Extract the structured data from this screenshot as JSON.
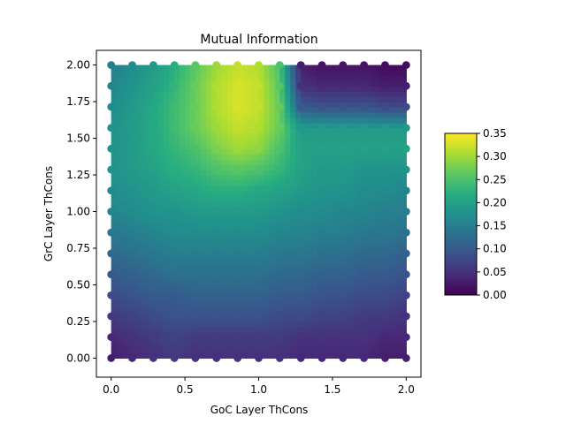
{
  "chart_data": {
    "type": "heatmap",
    "title": "Mutual Information",
    "xlabel": "GoC Layer ThCons",
    "ylabel": "GrC Layer ThCons",
    "xlim": [
      -0.1,
      2.1
    ],
    "ylim": [
      -0.13,
      2.1
    ],
    "x_ticks": [
      "0.0",
      "0.5",
      "1.0",
      "1.5",
      "2.0"
    ],
    "y_ticks": [
      "0.00",
      "0.25",
      "0.50",
      "0.75",
      "1.00",
      "1.25",
      "1.50",
      "1.75",
      "2.00"
    ],
    "grid": false,
    "colormap": "viridis",
    "colorbar": {
      "vmin": 0.0,
      "vmax": 0.35,
      "ticks": [
        "0.00",
        "0.05",
        "0.10",
        "0.15",
        "0.20",
        "0.25",
        "0.30",
        "0.35"
      ]
    },
    "x": [
      0,
      0.143,
      0.286,
      0.429,
      0.571,
      0.714,
      0.857,
      1.0,
      1.143,
      1.286,
      1.429,
      1.571,
      1.714,
      1.857,
      2.0
    ],
    "y": [
      0,
      0.143,
      0.286,
      0.429,
      0.571,
      0.714,
      0.857,
      1.0,
      1.143,
      1.286,
      1.429,
      1.571,
      1.714,
      1.857,
      2.0
    ],
    "values": [
      [
        0.03,
        0.04,
        0.05,
        0.06,
        0.05,
        0.05,
        0.05,
        0.05,
        0.05,
        0.04,
        0.04,
        0.04,
        0.04,
        0.03,
        0.03
      ],
      [
        0.04,
        0.05,
        0.06,
        0.07,
        0.06,
        0.06,
        0.06,
        0.06,
        0.06,
        0.05,
        0.05,
        0.05,
        0.05,
        0.04,
        0.04
      ],
      [
        0.06,
        0.07,
        0.08,
        0.09,
        0.09,
        0.09,
        0.09,
        0.09,
        0.08,
        0.08,
        0.07,
        0.07,
        0.06,
        0.06,
        0.05
      ],
      [
        0.08,
        0.09,
        0.1,
        0.1,
        0.11,
        0.11,
        0.11,
        0.11,
        0.1,
        0.1,
        0.09,
        0.09,
        0.08,
        0.08,
        0.07
      ],
      [
        0.1,
        0.11,
        0.12,
        0.13,
        0.13,
        0.13,
        0.13,
        0.13,
        0.12,
        0.12,
        0.11,
        0.11,
        0.1,
        0.1,
        0.09
      ],
      [
        0.12,
        0.13,
        0.14,
        0.15,
        0.15,
        0.15,
        0.15,
        0.15,
        0.14,
        0.14,
        0.13,
        0.13,
        0.12,
        0.12,
        0.11
      ],
      [
        0.14,
        0.15,
        0.16,
        0.17,
        0.17,
        0.17,
        0.17,
        0.17,
        0.16,
        0.16,
        0.15,
        0.15,
        0.14,
        0.14,
        0.13
      ],
      [
        0.16,
        0.17,
        0.18,
        0.18,
        0.19,
        0.19,
        0.19,
        0.19,
        0.18,
        0.17,
        0.17,
        0.16,
        0.16,
        0.15,
        0.15
      ],
      [
        0.17,
        0.18,
        0.19,
        0.2,
        0.21,
        0.22,
        0.22,
        0.21,
        0.2,
        0.19,
        0.18,
        0.18,
        0.17,
        0.17,
        0.16
      ],
      [
        0.18,
        0.19,
        0.2,
        0.22,
        0.23,
        0.25,
        0.26,
        0.25,
        0.23,
        0.2,
        0.19,
        0.19,
        0.18,
        0.18,
        0.18
      ],
      [
        0.18,
        0.19,
        0.21,
        0.23,
        0.25,
        0.28,
        0.3,
        0.29,
        0.25,
        0.2,
        0.2,
        0.2,
        0.2,
        0.2,
        0.2
      ],
      [
        0.18,
        0.19,
        0.21,
        0.24,
        0.27,
        0.3,
        0.32,
        0.31,
        0.27,
        0.19,
        0.19,
        0.19,
        0.19,
        0.19,
        0.19
      ],
      [
        0.17,
        0.19,
        0.21,
        0.24,
        0.27,
        0.31,
        0.33,
        0.32,
        0.27,
        0.1,
        0.09,
        0.09,
        0.09,
        0.08,
        0.08
      ],
      [
        0.16,
        0.18,
        0.2,
        0.23,
        0.27,
        0.31,
        0.33,
        0.32,
        0.26,
        0.05,
        0.04,
        0.04,
        0.04,
        0.03,
        0.03
      ],
      [
        0.15,
        0.17,
        0.19,
        0.22,
        0.26,
        0.3,
        0.32,
        0.31,
        0.25,
        0.03,
        0.02,
        0.02,
        0.02,
        0.01,
        0.01
      ]
    ]
  }
}
